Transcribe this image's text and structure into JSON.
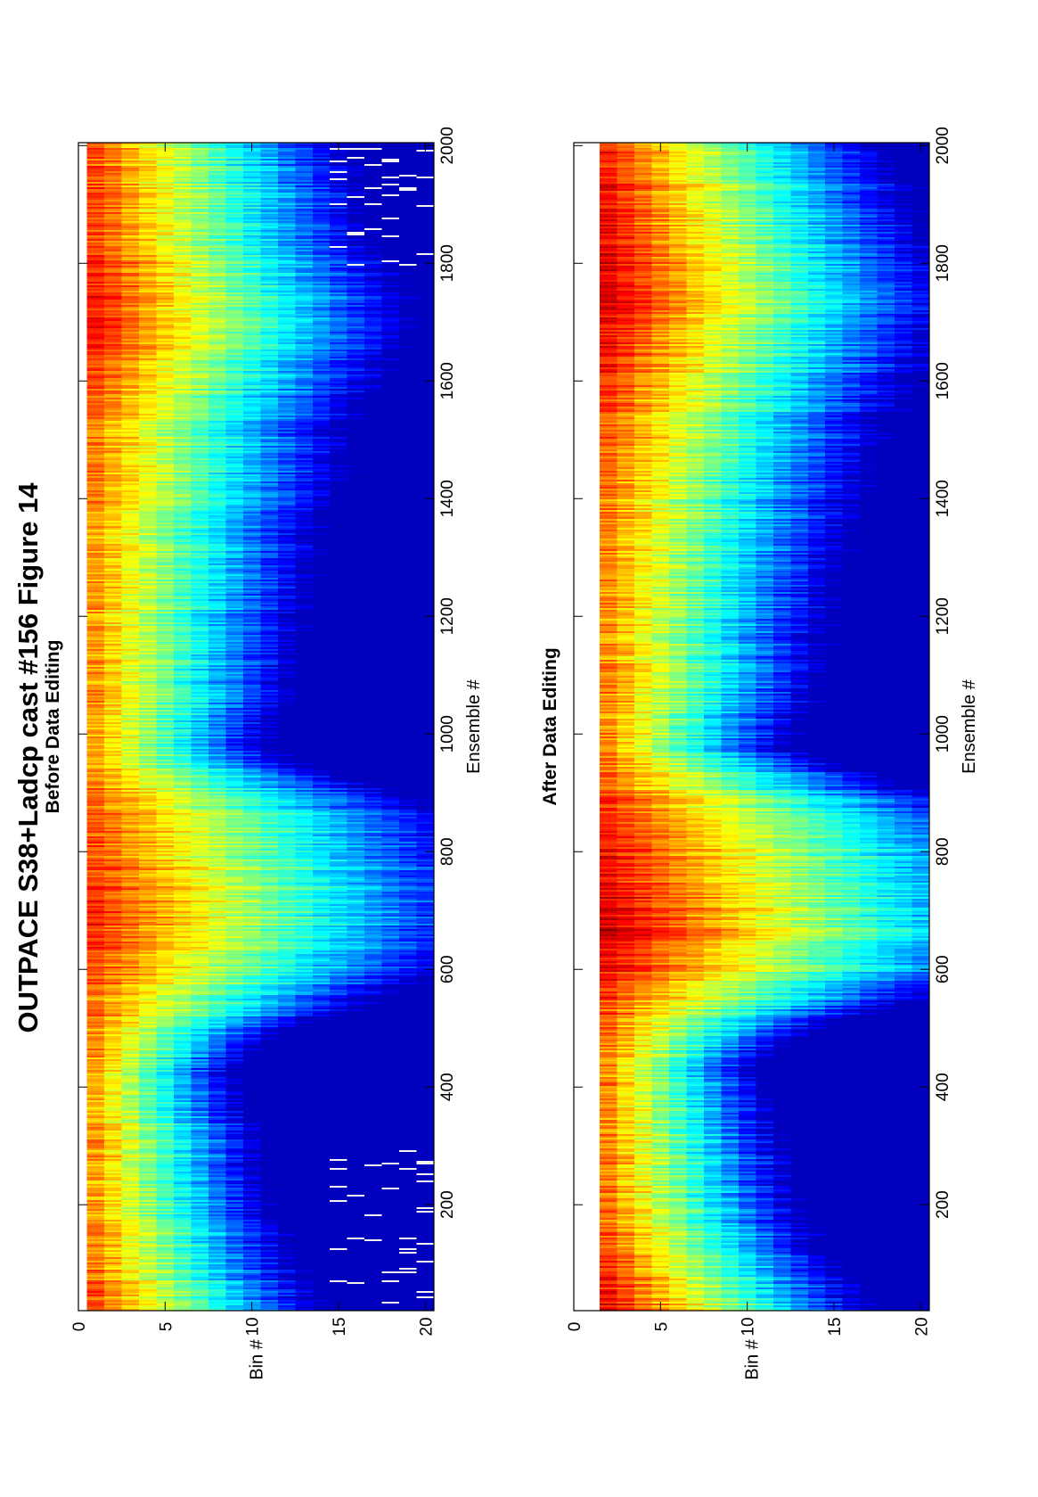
{
  "figure": {
    "title": "OUTPACE S38+Ladcp cast #156  Figure 14",
    "orientation": "rotated-90-ccw"
  },
  "chart_data": [
    {
      "type": "heatmap",
      "title": "Before Data Editing",
      "xlabel": "Ensemble #",
      "ylabel": "Bin #",
      "xlim": [
        20,
        2005
      ],
      "ylim": [
        0,
        20.5
      ],
      "y_reversed": true,
      "x_ticks": [
        200,
        400,
        600,
        800,
        1000,
        1200,
        1400,
        1600,
        1800,
        2000
      ],
      "y_ticks": [
        0,
        5,
        10,
        15,
        20
      ],
      "rows": 20,
      "bins": [
        1,
        20
      ],
      "colormap": "jet",
      "color_range": [
        0,
        1
      ],
      "data_start_bin": 1,
      "white_spikes": "deep bins at ensembles 30-300 and 1780-2000",
      "intensity_profile": {
        "ensembles": [
          20,
          100,
          200,
          300,
          380,
          430,
          480,
          540,
          600,
          660,
          720,
          800,
          860,
          920,
          980,
          1050,
          1150,
          1250,
          1350,
          1450,
          1550,
          1650,
          1750,
          1850,
          1950,
          2005
        ],
        "surface_level": [
          0.8,
          0.76,
          0.72,
          0.72,
          0.72,
          0.72,
          0.74,
          0.76,
          0.8,
          0.84,
          0.83,
          0.8,
          0.78,
          0.74,
          0.72,
          0.72,
          0.72,
          0.72,
          0.72,
          0.74,
          0.76,
          0.84,
          0.86,
          0.82,
          0.8,
          0.78
        ],
        "decay_per_bin": [
          0.058,
          0.062,
          0.068,
          0.072,
          0.078,
          0.085,
          0.07,
          0.045,
          0.036,
          0.035,
          0.034,
          0.034,
          0.035,
          0.045,
          0.07,
          0.062,
          0.058,
          0.055,
          0.052,
          0.05,
          0.048,
          0.045,
          0.045,
          0.048,
          0.05,
          0.052
        ]
      }
    },
    {
      "type": "heatmap",
      "title": "After Data Editing",
      "xlabel": "Ensemble #",
      "ylabel": "Bin #",
      "xlim": [
        20,
        2005
      ],
      "ylim": [
        0,
        20.5
      ],
      "y_reversed": true,
      "x_ticks": [
        200,
        400,
        600,
        800,
        1000,
        1200,
        1400,
        1600,
        1800,
        2000
      ],
      "y_ticks": [
        0,
        5,
        10,
        15,
        20
      ],
      "rows": 20,
      "bins": [
        1,
        20
      ],
      "colormap": "jet",
      "color_range": [
        0,
        1
      ],
      "data_start_bin": 2,
      "white_spikes": "none",
      "intensity_profile": {
        "ensembles": [
          20,
          100,
          200,
          300,
          380,
          430,
          480,
          540,
          600,
          660,
          720,
          800,
          860,
          920,
          980,
          1050,
          1150,
          1250,
          1350,
          1450,
          1550,
          1650,
          1750,
          1850,
          1950,
          2005
        ],
        "surface_level": [
          0.9,
          0.82,
          0.76,
          0.74,
          0.74,
          0.74,
          0.76,
          0.8,
          0.88,
          0.92,
          0.9,
          0.86,
          0.84,
          0.78,
          0.74,
          0.74,
          0.74,
          0.74,
          0.74,
          0.76,
          0.8,
          0.86,
          0.9,
          0.88,
          0.86,
          0.84
        ],
        "decay_per_bin": [
          0.055,
          0.06,
          0.066,
          0.07,
          0.076,
          0.082,
          0.068,
          0.044,
          0.034,
          0.033,
          0.032,
          0.032,
          0.034,
          0.044,
          0.068,
          0.06,
          0.056,
          0.053,
          0.05,
          0.048,
          0.046,
          0.043,
          0.043,
          0.046,
          0.048,
          0.05
        ]
      }
    }
  ]
}
